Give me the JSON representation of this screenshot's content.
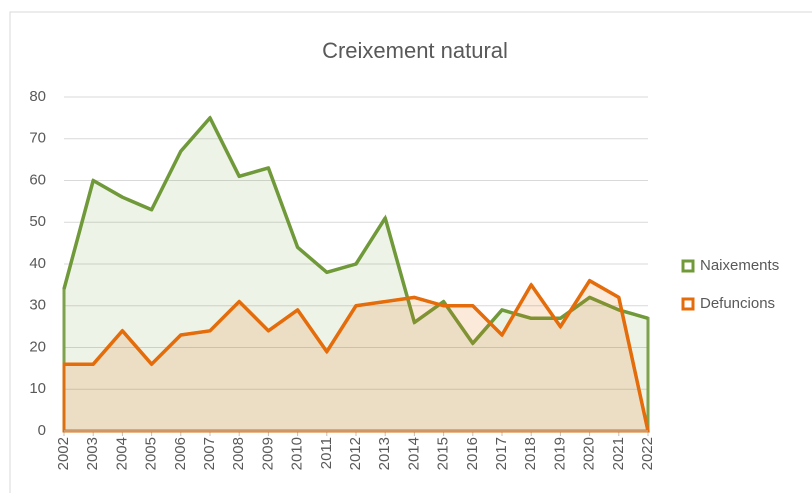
{
  "chart_data": {
    "type": "area",
    "title": "Creixement natural",
    "categories": [
      "2002",
      "2003",
      "2004",
      "2005",
      "2006",
      "2007",
      "2008",
      "2009",
      "2010",
      "2011",
      "2012",
      "2013",
      "2014",
      "2015",
      "2016",
      "2017",
      "2018",
      "2019",
      "2020",
      "2021",
      "2022"
    ],
    "series": [
      {
        "name": "Naixements",
        "color": "#70993a",
        "values": [
          34,
          60,
          56,
          53,
          67,
          75,
          61,
          63,
          44,
          38,
          40,
          51,
          26,
          31,
          21,
          29,
          27,
          27,
          32,
          29,
          27
        ]
      },
      {
        "name": "Defuncions",
        "color": "#e46c0a",
        "values": [
          16,
          16,
          24,
          16,
          23,
          24,
          31,
          24,
          29,
          19,
          30,
          31,
          32,
          30,
          30,
          23,
          35,
          25,
          36,
          32,
          0
        ]
      }
    ],
    "ylim": [
      0,
      80
    ],
    "yticks": [
      0,
      10,
      20,
      30,
      40,
      50,
      60,
      70,
      80
    ],
    "grid": true,
    "legend": "right"
  }
}
